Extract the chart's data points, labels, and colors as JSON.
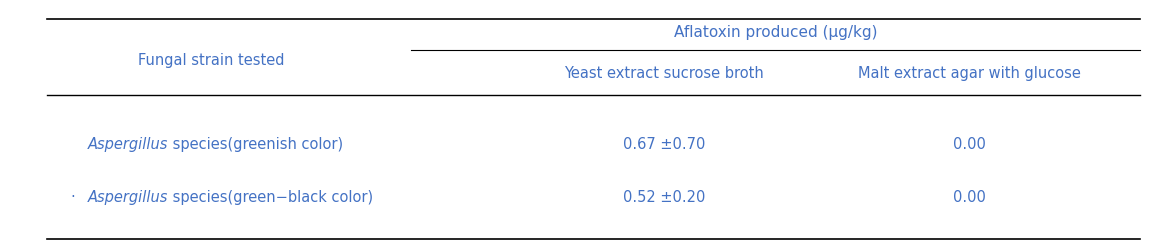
{
  "header_col": "Fungal strain tested",
  "header_group": "Aflatoxin produced (μg/kg)",
  "subheader1": "Yeast extract sucrose broth",
  "subheader2": "Malt extract agar with glucose",
  "rows": [
    {
      "strain_italic": "Aspergillus",
      "strain_rest": " species(greenish color)",
      "bullet": "",
      "val1": "0.67 ±0.70",
      "val2": "0.00"
    },
    {
      "strain_italic": "Aspergillus",
      "strain_rest": " species(green−black color)",
      "bullet": "·",
      "val1": "0.52 ±0.20",
      "val2": "0.00"
    }
  ],
  "text_color": "#4472C4",
  "line_color": "#000000",
  "bg_color": "#ffffff",
  "fontsize": 10.5,
  "header_fontsize": 11
}
